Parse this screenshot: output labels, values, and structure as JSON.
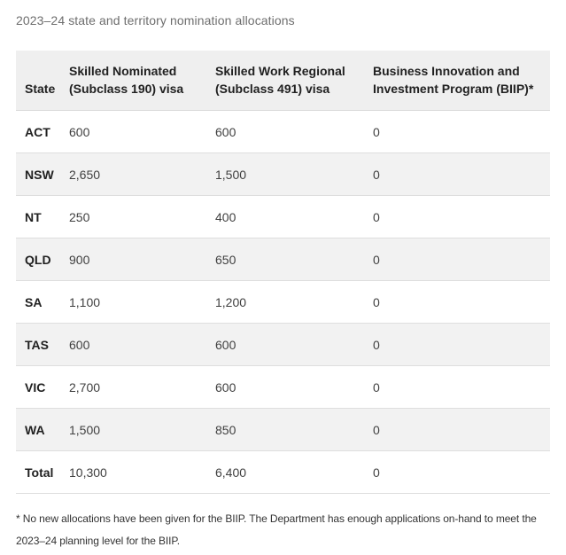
{
  "chart_data": {
    "type": "table",
    "title": "2023–24 state and territory nomination allocations",
    "columns": [
      "State",
      "Skilled Nominated (Subclass 190) visa",
      "Skilled Work Regional (Subclass 491) visa",
      "Business Innovation and Investment Program (BIIP)*"
    ],
    "rows": [
      {
        "state": "ACT",
        "subclass_190": "600",
        "subclass_491": "600",
        "biip": "0"
      },
      {
        "state": "NSW",
        "subclass_190": "2,650",
        "subclass_491": "1,500",
        "biip": "0"
      },
      {
        "state": "NT",
        "subclass_190": "250",
        "subclass_491": "400",
        "biip": "0"
      },
      {
        "state": "QLD",
        "subclass_190": "900",
        "subclass_491": "650",
        "biip": "0"
      },
      {
        "state": "SA",
        "subclass_190": "1,100",
        "subclass_491": "1,200",
        "biip": "0"
      },
      {
        "state": "TAS",
        "subclass_190": "600",
        "subclass_491": "600",
        "biip": "0"
      },
      {
        "state": "VIC",
        "subclass_190": "2,700",
        "subclass_491": "600",
        "biip": "0"
      },
      {
        "state": "WA",
        "subclass_190": "1,500",
        "subclass_491": "850",
        "biip": "0"
      },
      {
        "state": "Total",
        "subclass_190": "10,300",
        "subclass_491": "6,400",
        "biip": "0"
      }
    ],
    "numeric": {
      "categories": [
        "ACT",
        "NSW",
        "NT",
        "QLD",
        "SA",
        "TAS",
        "VIC",
        "WA"
      ],
      "series": [
        {
          "name": "Skilled Nominated (Subclass 190) visa",
          "values": [
            600,
            2650,
            250,
            900,
            1100,
            600,
            2700,
            1500
          ],
          "total": 10300
        },
        {
          "name": "Skilled Work Regional (Subclass 491) visa",
          "values": [
            600,
            1500,
            400,
            650,
            1200,
            600,
            600,
            850
          ],
          "total": 6400
        },
        {
          "name": "Business Innovation and Investment Program (BIIP)",
          "values": [
            0,
            0,
            0,
            0,
            0,
            0,
            0,
            0
          ],
          "total": 0
        }
      ]
    },
    "footnote": "* No new allocations have been given for the BIIP. The Department has enough applications on-hand to meet the 2023–24 planning level for the BIIP.",
    "colors": {
      "header_background": "#efefef",
      "stripe_background": "#f2f2f2",
      "row_border": "#dedede",
      "title_text": "#6e6e6e",
      "header_text": "#212121",
      "cell_text": "#404040"
    }
  }
}
